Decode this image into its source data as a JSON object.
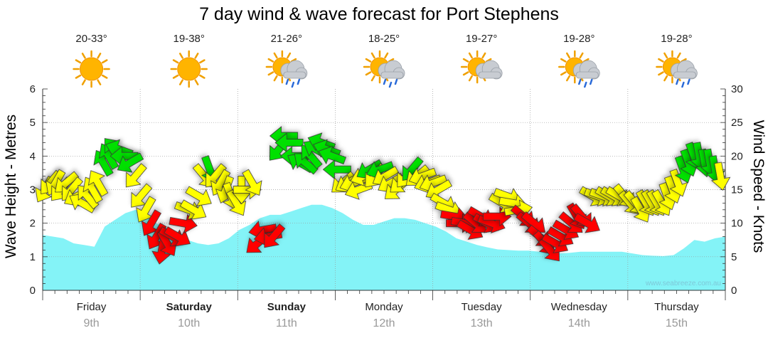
{
  "chart_data": {
    "type": "area+arrows",
    "title": "7 day wind & wave forecast for Port Stephens",
    "ylabel_left": "Wave Height - Metres",
    "ylabel_right": "Wind Speed - Knots",
    "ylim_left": [
      0,
      6
    ],
    "ylim_right": [
      0,
      30
    ],
    "yticks_left": [
      "0",
      "1",
      "2",
      "3",
      "4",
      "5",
      "6"
    ],
    "yticks_right": [
      "0",
      "5",
      "10",
      "15",
      "20",
      "25",
      "30"
    ],
    "watermark": "www.seabreeze.com.au",
    "days": [
      {
        "name": "Friday",
        "num": "9th",
        "bold": false,
        "temp": "20-33°",
        "icon": "sun-icon"
      },
      {
        "name": "Saturday",
        "num": "10th",
        "bold": true,
        "temp": "19-38°",
        "icon": "sun-icon"
      },
      {
        "name": "Sunday",
        "num": "11th",
        "bold": true,
        "temp": "21-26°",
        "icon": "sun-cloud-rain-icon"
      },
      {
        "name": "Monday",
        "num": "12th",
        "bold": false,
        "temp": "18-25°",
        "icon": "sun-cloud-rain-icon"
      },
      {
        "name": "Tuesday",
        "num": "13th",
        "bold": false,
        "temp": "19-27°",
        "icon": "sun-cloud-icon"
      },
      {
        "name": "Wednesday",
        "num": "14th",
        "bold": false,
        "temp": "19-28°",
        "icon": "sun-cloud-rain-icon"
      },
      {
        "name": "Thursday",
        "num": "15th",
        "bold": false,
        "temp": "19-28°",
        "icon": "sun-cloud-rain-icon"
      }
    ],
    "wave_height_m": [
      1.65,
      1.6,
      1.55,
      1.4,
      1.35,
      1.3,
      1.9,
      2.1,
      2.3,
      2.4,
      2.2,
      2.0,
      1.85,
      1.65,
      1.5,
      1.4,
      1.35,
      1.4,
      1.55,
      1.8,
      1.95,
      2.15,
      2.25,
      2.25,
      2.35,
      2.45,
      2.55,
      2.55,
      2.45,
      2.3,
      2.1,
      1.95,
      1.95,
      2.05,
      2.15,
      2.15,
      2.1,
      2.0,
      1.9,
      1.75,
      1.55,
      1.45,
      1.35,
      1.28,
      1.22,
      1.2,
      1.18,
      1.18,
      1.15,
      1.12,
      1.1,
      1.12,
      1.15,
      1.15,
      1.15,
      1.15,
      1.15,
      1.1,
      1.05,
      1.03,
      1.02,
      1.05,
      1.25,
      1.5,
      1.45,
      1.55,
      1.6
    ],
    "colors": {
      "wave": "#84f3f7",
      "calm": "#ff0000",
      "moderate": "#ffff00",
      "strong": "#00e000",
      "grid": "#999999"
    },
    "wind_knots": [
      15,
      16,
      16,
      15,
      16,
      15,
      14,
      13,
      14,
      15,
      16,
      19,
      20,
      21,
      21,
      20,
      19,
      17,
      14,
      12,
      10,
      8,
      6,
      7,
      8,
      8,
      10,
      12,
      12,
      14,
      17,
      18,
      17,
      16,
      15,
      14,
      13,
      15,
      15,
      16,
      7,
      9,
      8,
      8,
      21,
      23,
      22,
      20,
      19,
      19,
      20,
      21,
      22,
      21,
      20,
      18,
      16,
      16,
      16,
      15,
      17,
      18,
      17,
      18,
      17,
      16,
      15,
      16,
      17,
      18,
      17,
      17,
      16,
      16,
      15,
      13,
      12,
      11,
      10,
      10,
      9,
      10,
      11,
      10,
      10,
      11,
      13,
      14,
      13,
      12,
      11,
      10,
      10,
      8,
      7,
      6,
      7,
      8,
      9,
      10,
      11,
      11,
      10,
      14,
      14,
      14,
      14,
      14,
      14,
      14,
      13,
      13,
      12,
      13,
      13,
      13,
      13,
      14,
      15,
      16,
      18,
      19,
      20,
      20,
      19,
      19,
      18,
      17
    ],
    "wind_direction_deg": [
      30,
      40,
      30,
      40,
      50,
      40,
      60,
      120,
      140,
      150,
      150,
      150,
      150,
      140,
      110,
      90,
      60,
      40,
      40,
      30,
      30,
      30,
      10,
      330,
      300,
      300,
      280,
      290,
      300,
      300,
      320,
      340,
      40,
      30,
      20,
      340,
      330,
      0,
      270,
      330,
      50,
      80,
      80,
      40,
      40,
      90,
      90,
      90,
      120,
      130,
      140,
      120,
      110,
      110,
      110,
      90,
      50,
      60,
      70,
      70,
      70,
      60,
      40,
      70,
      60,
      60,
      50,
      50,
      40,
      40,
      50,
      70,
      70,
      70,
      60,
      300,
      290,
      280,
      270,
      280,
      300,
      310,
      300,
      300,
      290,
      270,
      300,
      290,
      280,
      260,
      310,
      310,
      310,
      310,
      320,
      320,
      300,
      300,
      300,
      310,
      330,
      320,
      300,
      300,
      290,
      290,
      300,
      300,
      300,
      320,
      320,
      320,
      330,
      330,
      330,
      330,
      330,
      340,
      340,
      340,
      340,
      340,
      340,
      350,
      350,
      350,
      350,
      350
    ]
  }
}
